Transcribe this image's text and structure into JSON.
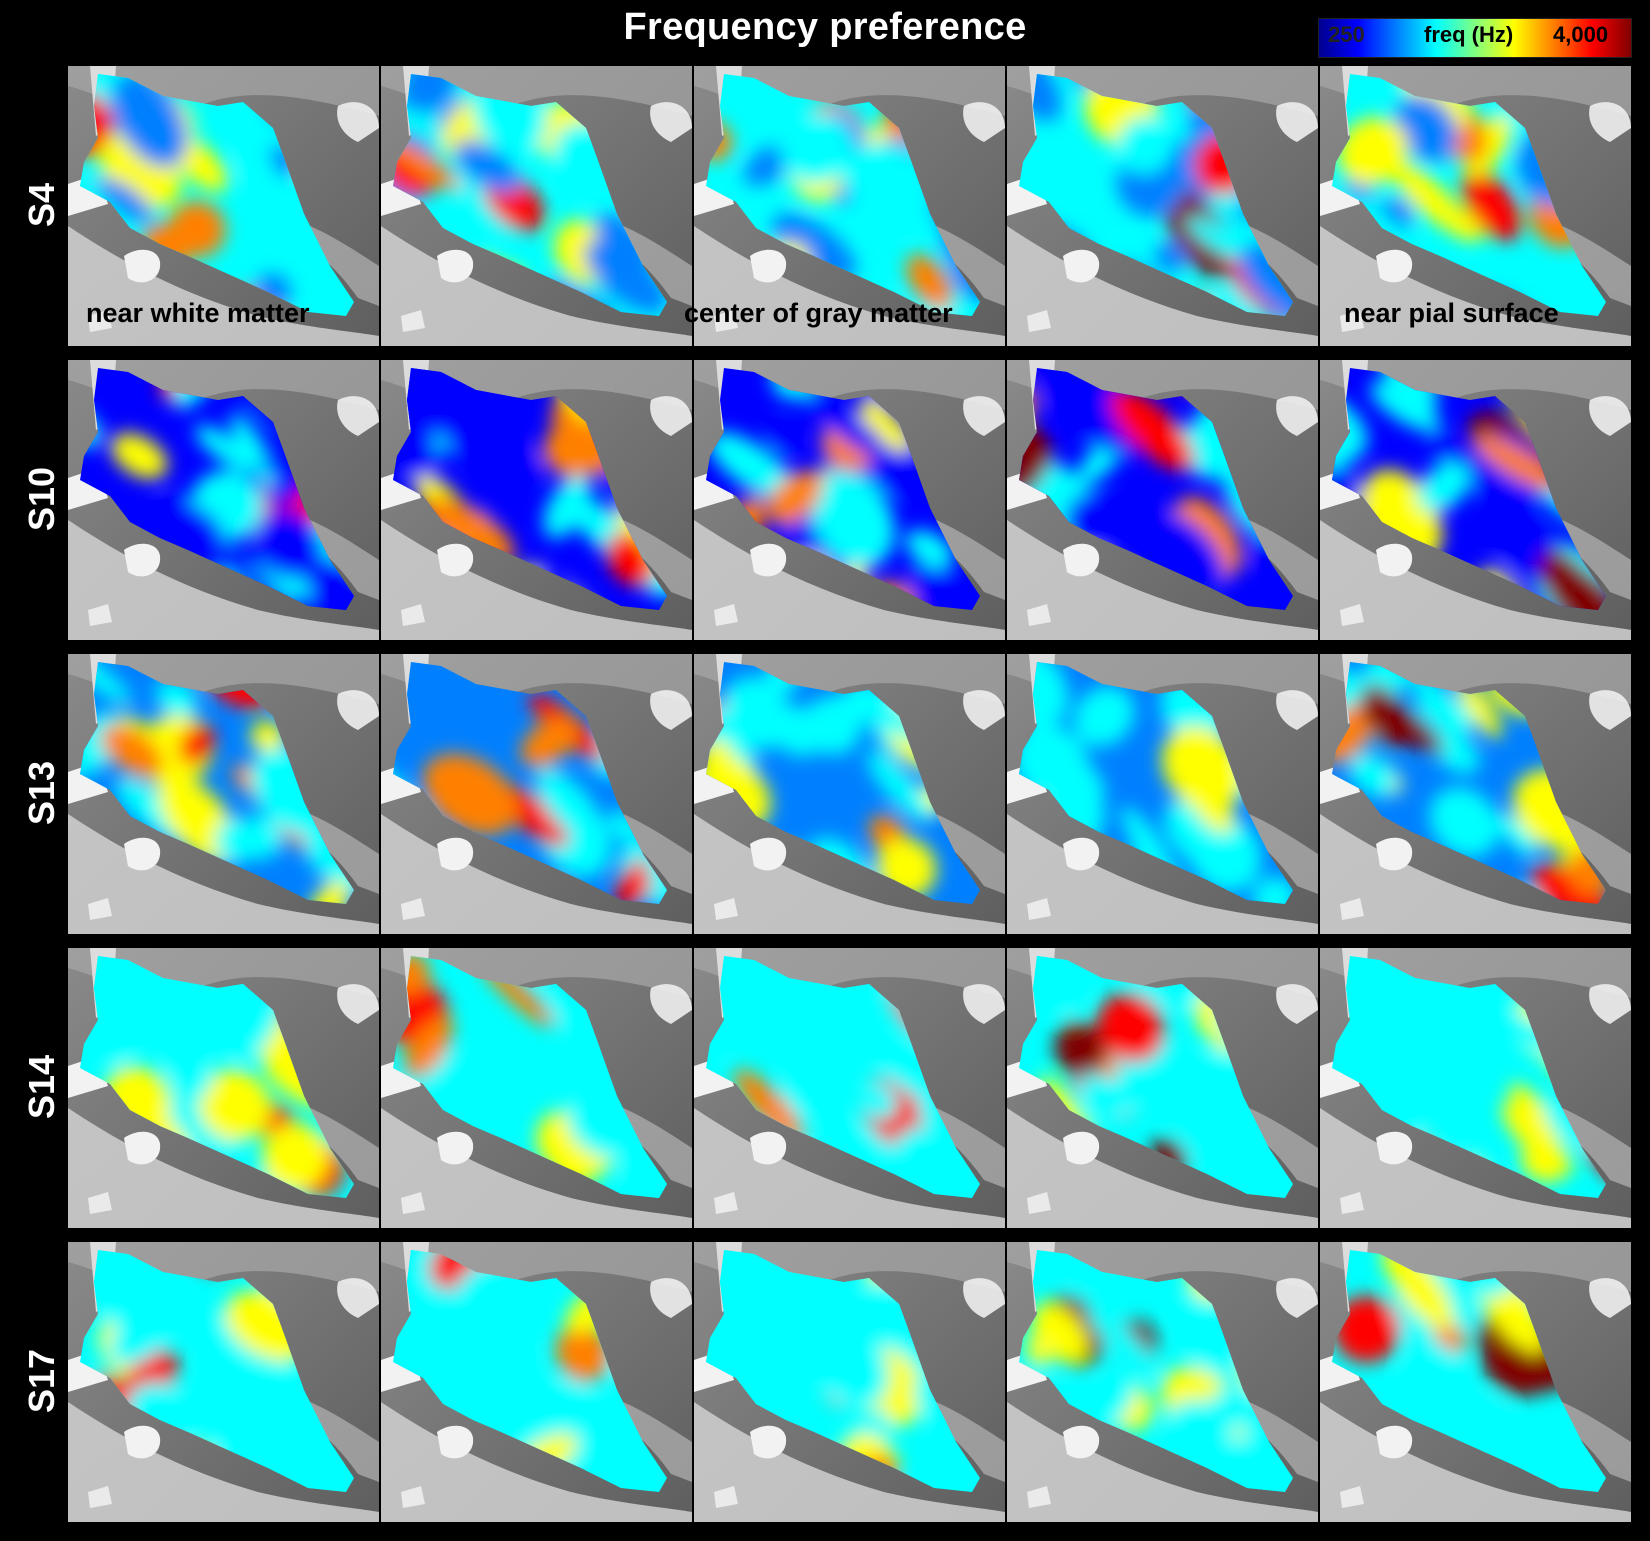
{
  "title": "Frequency preference",
  "colorbar": {
    "min_label": "250",
    "mid_label": "freq (Hz)",
    "max_label": "4,000",
    "colormap": [
      "#00008f",
      "#0000ff",
      "#0080ff",
      "#00ffff",
      "#80ff80",
      "#ffff00",
      "#ff8000",
      "#ff0000",
      "#800000"
    ]
  },
  "subjects": [
    "S4",
    "S10",
    "S13",
    "S14",
    "S17"
  ],
  "layer_labels": {
    "near_white_matter": "near white matter",
    "center_gray_matter": "center of gray matter",
    "near_pial_surface": "near pial surface"
  },
  "colors": {
    "background": "#000000",
    "surface_dark": "#6e6e6e",
    "surface_light": "#c8c8c8",
    "surface_white": "#f0f0f0"
  }
}
